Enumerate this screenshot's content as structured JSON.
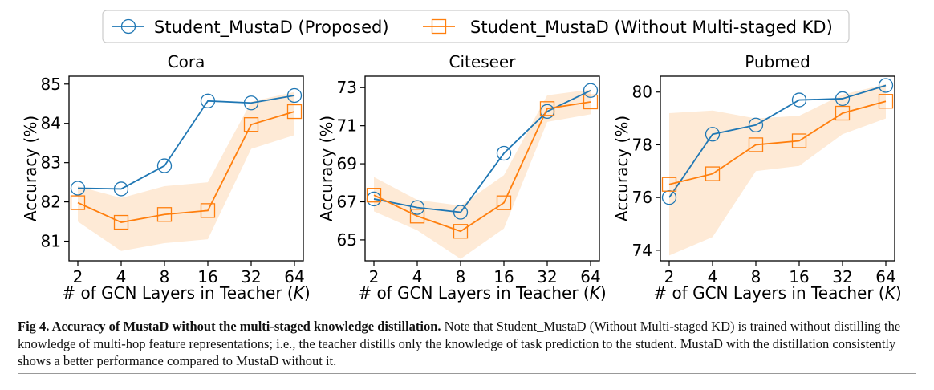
{
  "colors": {
    "proposed": "#1f77b4",
    "without": "#ff7f0e",
    "band": "#fde3c8"
  },
  "legend": {
    "proposed": "Student_MustaD (Proposed)",
    "without": "Student_MustaD (Without Multi-staged KD)"
  },
  "chart_data": [
    {
      "type": "line",
      "title": "Cora",
      "xlabel": "# of GCN Layers in Teacher (K)",
      "ylabel": "Accuracy (%)",
      "categories": [
        "2",
        "4",
        "8",
        "16",
        "32",
        "64"
      ],
      "ylim": [
        80.5,
        85.2
      ],
      "yticks": [
        81,
        82,
        83,
        84,
        85
      ],
      "series": [
        {
          "name": "Student_MustaD (Proposed)",
          "values": [
            82.35,
            82.33,
            82.92,
            84.57,
            84.52,
            84.71
          ]
        },
        {
          "name": "Student_MustaD (Without Multi-staged KD)",
          "values": [
            81.98,
            81.48,
            81.68,
            81.78,
            83.97,
            84.3
          ],
          "band_low": [
            81.5,
            80.75,
            80.95,
            81.05,
            83.35,
            83.7
          ],
          "band_high": [
            82.4,
            82.1,
            82.4,
            82.5,
            84.55,
            84.8
          ]
        }
      ]
    },
    {
      "type": "line",
      "title": "Citeseer",
      "xlabel": "# of GCN Layers in Teacher (K)",
      "ylabel": "Accuracy (%)",
      "categories": [
        "2",
        "4",
        "8",
        "16",
        "32",
        "64"
      ],
      "ylim": [
        63.9,
        73.6
      ],
      "yticks": [
        65,
        67,
        69,
        71,
        73
      ],
      "series": [
        {
          "name": "Student_MustaD (Proposed)",
          "values": [
            67.15,
            66.7,
            66.45,
            69.55,
            71.75,
            72.85
          ]
        },
        {
          "name": "Student_MustaD (Without Multi-staged KD)",
          "values": [
            67.35,
            66.25,
            65.45,
            66.95,
            71.9,
            72.25
          ],
          "band_low": [
            66.5,
            65.5,
            64.0,
            65.6,
            71.2,
            71.6
          ],
          "band_high": [
            68.3,
            67.1,
            66.8,
            68.4,
            72.6,
            72.9
          ]
        }
      ]
    },
    {
      "type": "line",
      "title": "Pubmed",
      "xlabel": "# of GCN Layers in Teacher (K)",
      "ylabel": "Accuracy (%)",
      "categories": [
        "2",
        "4",
        "8",
        "16",
        "32",
        "64"
      ],
      "ylim": [
        73.6,
        80.6
      ],
      "yticks": [
        74,
        76,
        78,
        80
      ],
      "series": [
        {
          "name": "Student_MustaD (Proposed)",
          "values": [
            76.0,
            78.4,
            78.75,
            79.7,
            79.75,
            80.25
          ]
        },
        {
          "name": "Student_MustaD (Without Multi-staged KD)",
          "values": [
            76.5,
            76.9,
            78.0,
            78.15,
            79.2,
            79.65
          ],
          "band_low": [
            73.8,
            74.5,
            77.0,
            77.2,
            78.4,
            79.0
          ],
          "band_high": [
            79.2,
            79.3,
            79.0,
            79.1,
            79.9,
            80.3
          ]
        }
      ]
    }
  ],
  "caption": {
    "lead": "Fig 4.  Accuracy of MustaD without the multi-staged knowledge distillation.",
    "body": "Note that Student_MustaD (Without Multi-staged KD) is trained without distilling the knowledge of multi-hop feature representations; i.e., the teacher distills only the knowledge of task prediction to the student. MustaD with the distillation consistently shows a better performance compared to MustaD without it."
  }
}
